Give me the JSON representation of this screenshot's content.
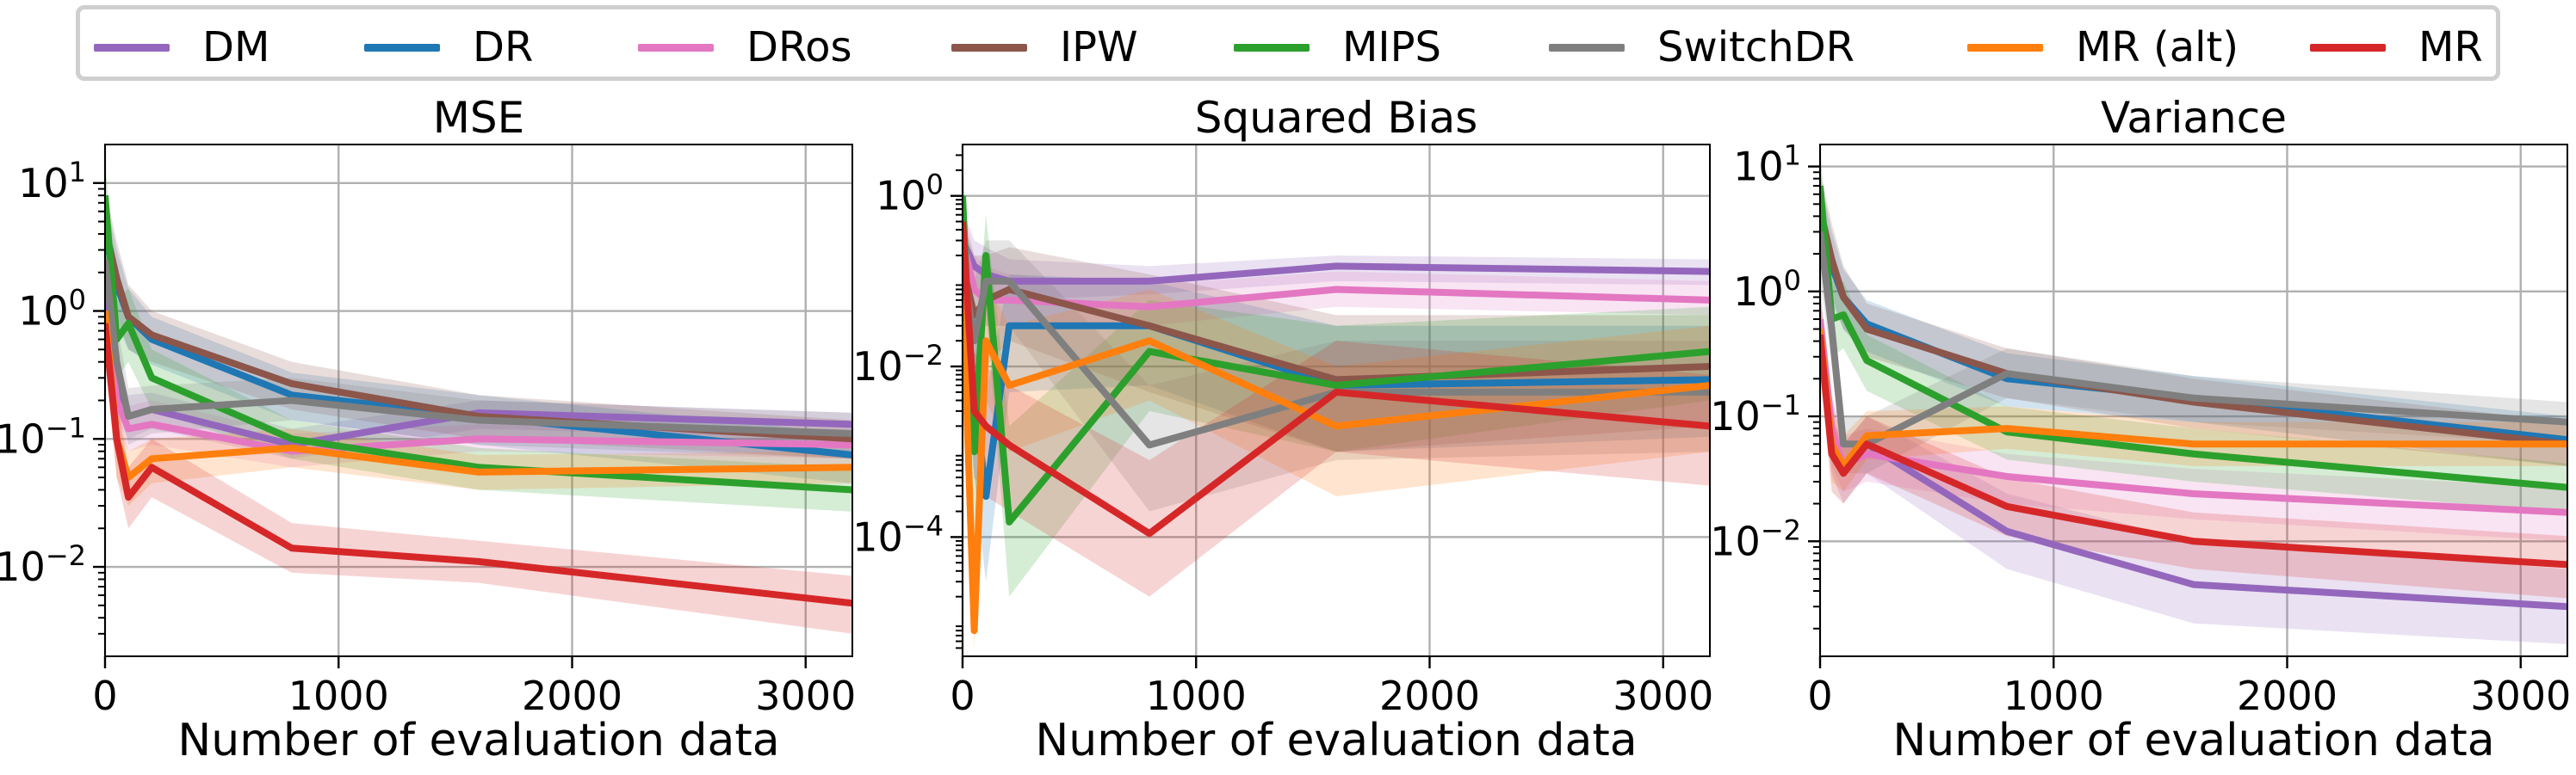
{
  "legend": {
    "items": [
      {
        "label": "DM",
        "color": "#9467bd"
      },
      {
        "label": "DR",
        "color": "#1f77b4"
      },
      {
        "label": "DRos",
        "color": "#e377c2"
      },
      {
        "label": "IPW",
        "color": "#8c564b"
      },
      {
        "label": "MIPS",
        "color": "#2ca02c"
      },
      {
        "label": "SwitchDR",
        "color": "#7f7f7f"
      },
      {
        "label": "MR (alt)",
        "color": "#ff7f0e"
      },
      {
        "label": "MR",
        "color": "#d62728"
      }
    ]
  },
  "chart_data": [
    {
      "type": "line",
      "title": "MSE",
      "xlabel": "Number of evaluation data",
      "ylabel": "",
      "xlim": [
        0,
        3200
      ],
      "ylim": [
        0.002,
        20
      ],
      "yscale": "log",
      "xticks": [
        0,
        1000,
        2000,
        3000
      ],
      "xtick_labels": [
        "0",
        "1000",
        "2000",
        "3000"
      ],
      "yticks": [
        0.01,
        0.1,
        1,
        10
      ],
      "ytick_labels": [
        "10^-2",
        "10^-1",
        "10^0",
        "10^1"
      ],
      "grid": true,
      "x": [
        0,
        50,
        100,
        200,
        800,
        1600,
        3200
      ],
      "series": [
        {
          "name": "DM",
          "values": [
            1.2,
            0.25,
            0.15,
            0.17,
            0.09,
            0.16,
            0.13
          ],
          "band": [
            [
              0.6,
              2.4
            ],
            [
              0.14,
              0.4
            ],
            [
              0.1,
              0.22
            ],
            [
              0.12,
              0.23
            ],
            [
              0.07,
              0.12
            ],
            [
              0.12,
              0.2
            ],
            [
              0.1,
              0.16
            ]
          ]
        },
        {
          "name": "DR",
          "values": [
            4.0,
            1.6,
            0.9,
            0.6,
            0.22,
            0.15,
            0.075
          ],
          "band": [
            [
              1.5,
              8.0
            ],
            [
              0.8,
              3.0
            ],
            [
              0.5,
              1.5
            ],
            [
              0.38,
              0.9
            ],
            [
              0.14,
              0.33
            ],
            [
              0.09,
              0.22
            ],
            [
              0.045,
              0.11
            ]
          ]
        },
        {
          "name": "DRos",
          "values": [
            1.0,
            0.2,
            0.12,
            0.13,
            0.08,
            0.1,
            0.09
          ],
          "band": [
            [
              0.5,
              2.0
            ],
            [
              0.12,
              0.35
            ],
            [
              0.08,
              0.18
            ],
            [
              0.09,
              0.2
            ],
            [
              0.06,
              0.11
            ],
            [
              0.08,
              0.13
            ],
            [
              0.07,
              0.12
            ]
          ]
        },
        {
          "name": "IPW",
          "values": [
            4.5,
            1.8,
            0.9,
            0.65,
            0.27,
            0.15,
            0.1
          ],
          "band": [
            [
              1.5,
              9.0
            ],
            [
              0.9,
              3.5
            ],
            [
              0.5,
              1.6
            ],
            [
              0.4,
              1.0
            ],
            [
              0.17,
              0.4
            ],
            [
              0.1,
              0.22
            ],
            [
              0.07,
              0.14
            ]
          ]
        },
        {
          "name": "MIPS",
          "values": [
            8.0,
            0.6,
            0.8,
            0.3,
            0.1,
            0.06,
            0.04
          ],
          "band": [
            [
              3.0,
              15.0
            ],
            [
              0.3,
              1.2
            ],
            [
              0.4,
              1.5
            ],
            [
              0.17,
              0.5
            ],
            [
              0.07,
              0.14
            ],
            [
              0.04,
              0.085
            ],
            [
              0.027,
              0.06
            ]
          ]
        },
        {
          "name": "SwitchDR",
          "values": [
            2.5,
            0.4,
            0.15,
            0.17,
            0.2,
            0.14,
            0.11
          ],
          "band": [
            [
              1.0,
              5.0
            ],
            [
              0.2,
              0.8
            ],
            [
              0.09,
              0.25
            ],
            [
              0.11,
              0.26
            ],
            [
              0.14,
              0.3
            ],
            [
              0.09,
              0.2
            ],
            [
              0.07,
              0.16
            ]
          ]
        },
        {
          "name": "MR (alt)",
          "values": [
            1.0,
            0.1,
            0.05,
            0.07,
            0.085,
            0.055,
            0.06
          ],
          "band": [
            [
              0.5,
              2.0
            ],
            [
              0.05,
              0.2
            ],
            [
              0.03,
              0.08
            ],
            [
              0.045,
              0.1
            ],
            [
              0.06,
              0.12
            ],
            [
              0.04,
              0.075
            ],
            [
              0.045,
              0.08
            ]
          ]
        },
        {
          "name": "MR",
          "values": [
            0.8,
            0.1,
            0.035,
            0.06,
            0.014,
            0.011,
            0.0052
          ],
          "band": [
            [
              0.4,
              1.6
            ],
            [
              0.05,
              0.2
            ],
            [
              0.02,
              0.06
            ],
            [
              0.035,
              0.1
            ],
            [
              0.009,
              0.022
            ],
            [
              0.0075,
              0.016
            ],
            [
              0.003,
              0.0085
            ]
          ]
        }
      ]
    },
    {
      "type": "line",
      "title": "Squared Bias",
      "xlabel": "Number of evaluation data",
      "ylabel": "",
      "xlim": [
        0,
        3200
      ],
      "ylim": [
        4e-06,
        4
      ],
      "yscale": "log",
      "xticks": [
        0,
        1000,
        2000,
        3000
      ],
      "xtick_labels": [
        "0",
        "1000",
        "2000",
        "3000"
      ],
      "yticks": [
        0.0001,
        0.01,
        1
      ],
      "ytick_labels": [
        "10^-4",
        "10^-2",
        "10^0"
      ],
      "grid": true,
      "x": [
        0,
        50,
        100,
        200,
        800,
        1600,
        3200
      ],
      "series": [
        {
          "name": "DM",
          "values": [
            0.3,
            0.15,
            0.12,
            0.1,
            0.1,
            0.15,
            0.13
          ],
          "band": [
            [
              0.1,
              0.7
            ],
            [
              0.07,
              0.3
            ],
            [
              0.06,
              0.25
            ],
            [
              0.06,
              0.18
            ],
            [
              0.07,
              0.15
            ],
            [
              0.1,
              0.2
            ],
            [
              0.09,
              0.18
            ]
          ]
        },
        {
          "name": "DR",
          "values": [
            0.05,
            0.005,
            0.0003,
            0.03,
            0.03,
            0.006,
            0.007
          ],
          "band": [
            [
              0.01,
              0.3
            ],
            [
              0.0005,
              0.05
            ],
            [
              3e-05,
              0.005
            ],
            [
              0.005,
              0.12
            ],
            [
              0.006,
              0.1
            ],
            [
              0.001,
              0.03
            ],
            [
              0.0015,
              0.03
            ]
          ]
        },
        {
          "name": "DRos",
          "values": [
            0.3,
            0.08,
            0.06,
            0.06,
            0.05,
            0.08,
            0.06
          ],
          "band": [
            [
              0.1,
              0.8
            ],
            [
              0.03,
              0.2
            ],
            [
              0.03,
              0.15
            ],
            [
              0.03,
              0.12
            ],
            [
              0.03,
              0.09
            ],
            [
              0.05,
              0.13
            ],
            [
              0.04,
              0.1
            ]
          ]
        },
        {
          "name": "IPW",
          "values": [
            0.15,
            0.04,
            0.06,
            0.08,
            0.03,
            0.007,
            0.01
          ],
          "band": [
            [
              0.03,
              0.5
            ],
            [
              0.005,
              0.2
            ],
            [
              0.01,
              0.2
            ],
            [
              0.02,
              0.25
            ],
            [
              0.005,
              0.12
            ],
            [
              0.001,
              0.04
            ],
            [
              0.002,
              0.04
            ]
          ]
        },
        {
          "name": "MIPS",
          "values": [
            1.0,
            0.001,
            0.2,
            0.00015,
            0.015,
            0.006,
            0.015
          ],
          "band": [
            [
              0.3,
              3.0
            ],
            [
              0.0001,
              0.01
            ],
            [
              0.05,
              0.6
            ],
            [
              2e-05,
              0.002
            ],
            [
              0.003,
              0.06
            ],
            [
              0.001,
              0.03
            ],
            [
              0.004,
              0.05
            ]
          ]
        },
        {
          "name": "SwitchDR",
          "values": [
            0.15,
            0.02,
            0.1,
            0.1,
            0.0012,
            0.005,
            0.005
          ],
          "band": [
            [
              0.03,
              0.5
            ],
            [
              0.002,
              0.1
            ],
            [
              0.03,
              0.3
            ],
            [
              0.03,
              0.3
            ],
            [
              0.0002,
              0.006
            ],
            [
              0.0008,
              0.02
            ],
            [
              0.001,
              0.02
            ]
          ]
        },
        {
          "name": "MR (alt)",
          "values": [
            0.1,
            8e-06,
            0.02,
            0.006,
            0.02,
            0.002,
            0.006
          ],
          "band": [
            [
              0.02,
              0.5
            ],
            [
              5e-06,
              0.0001
            ],
            [
              0.004,
              0.1
            ],
            [
              0.001,
              0.03
            ],
            [
              0.004,
              0.08
            ],
            [
              0.0003,
              0.01
            ],
            [
              0.001,
              0.03
            ]
          ]
        },
        {
          "name": "MR",
          "values": [
            0.5,
            0.003,
            0.002,
            0.0012,
            0.00011,
            0.005,
            0.002
          ],
          "band": [
            [
              0.1,
              1.5
            ],
            [
              0.0005,
              0.015
            ],
            [
              0.0003,
              0.01
            ],
            [
              0.0002,
              0.006
            ],
            [
              2e-05,
              0.0008
            ],
            [
              0.001,
              0.02
            ],
            [
              0.0004,
              0.008
            ]
          ]
        }
      ]
    },
    {
      "type": "line",
      "title": "Variance",
      "xlabel": "Number of evaluation data",
      "ylabel": "",
      "xlim": [
        0,
        3200
      ],
      "ylim": [
        0.0012,
        15
      ],
      "yscale": "log",
      "xticks": [
        0,
        1000,
        2000,
        3000
      ],
      "xtick_labels": [
        "0",
        "1000",
        "2000",
        "3000"
      ],
      "yticks": [
        0.01,
        0.1,
        1,
        10
      ],
      "ytick_labels": [
        "10^-2",
        "10^-1",
        "10^0",
        "10^1"
      ],
      "grid": true,
      "x": [
        0,
        50,
        100,
        200,
        800,
        1600,
        3200
      ],
      "series": [
        {
          "name": "DM",
          "values": [
            0.5,
            0.07,
            0.035,
            0.06,
            0.012,
            0.0045,
            0.003
          ],
          "band": [
            [
              0.25,
              1.0
            ],
            [
              0.035,
              0.14
            ],
            [
              0.02,
              0.06
            ],
            [
              0.035,
              0.1
            ],
            [
              0.006,
              0.024
            ],
            [
              0.0022,
              0.01
            ],
            [
              0.0015,
              0.006
            ]
          ]
        },
        {
          "name": "DR",
          "values": [
            4.0,
            1.6,
            0.9,
            0.55,
            0.2,
            0.14,
            0.065
          ],
          "band": [
            [
              1.8,
              8.0
            ],
            [
              0.8,
              3.0
            ],
            [
              0.5,
              1.5
            ],
            [
              0.33,
              0.85
            ],
            [
              0.12,
              0.32
            ],
            [
              0.09,
              0.21
            ],
            [
              0.04,
              0.1
            ]
          ]
        },
        {
          "name": "DRos",
          "values": [
            0.6,
            0.08,
            0.04,
            0.05,
            0.033,
            0.024,
            0.017
          ],
          "band": [
            [
              0.3,
              1.2
            ],
            [
              0.04,
              0.15
            ],
            [
              0.025,
              0.07
            ],
            [
              0.03,
              0.08
            ],
            [
              0.02,
              0.05
            ],
            [
              0.015,
              0.038
            ],
            [
              0.01,
              0.027
            ]
          ]
        },
        {
          "name": "IPW",
          "values": [
            4.5,
            1.8,
            0.9,
            0.5,
            0.22,
            0.13,
            0.06
          ],
          "band": [
            [
              2.0,
              9.0
            ],
            [
              0.9,
              3.5
            ],
            [
              0.5,
              1.6
            ],
            [
              0.3,
              0.8
            ],
            [
              0.14,
              0.35
            ],
            [
              0.08,
              0.2
            ],
            [
              0.04,
              0.09
            ]
          ]
        },
        {
          "name": "MIPS",
          "values": [
            7.0,
            0.6,
            0.65,
            0.28,
            0.075,
            0.05,
            0.027
          ],
          "band": [
            [
              3.0,
              14.0
            ],
            [
              0.3,
              1.2
            ],
            [
              0.35,
              1.2
            ],
            [
              0.16,
              0.45
            ],
            [
              0.045,
              0.12
            ],
            [
              0.03,
              0.08
            ],
            [
              0.017,
              0.042
            ]
          ]
        },
        {
          "name": "SwitchDR",
          "values": [
            3.0,
            0.5,
            0.06,
            0.06,
            0.22,
            0.14,
            0.09
          ],
          "band": [
            [
              1.3,
              6.0
            ],
            [
              0.25,
              1.0
            ],
            [
              0.035,
              0.1
            ],
            [
              0.035,
              0.1
            ],
            [
              0.14,
              0.35
            ],
            [
              0.09,
              0.21
            ],
            [
              0.06,
              0.13
            ]
          ]
        },
        {
          "name": "MR (alt)",
          "values": [
            0.5,
            0.06,
            0.04,
            0.07,
            0.08,
            0.06,
            0.06
          ],
          "band": [
            [
              0.25,
              1.0
            ],
            [
              0.03,
              0.12
            ],
            [
              0.025,
              0.07
            ],
            [
              0.045,
              0.11
            ],
            [
              0.055,
              0.12
            ],
            [
              0.04,
              0.09
            ],
            [
              0.04,
              0.09
            ]
          ]
        },
        {
          "name": "MR",
          "values": [
            0.45,
            0.05,
            0.035,
            0.06,
            0.019,
            0.01,
            0.0065
          ],
          "band": [
            [
              0.22,
              0.9
            ],
            [
              0.025,
              0.1
            ],
            [
              0.02,
              0.06
            ],
            [
              0.035,
              0.1
            ],
            [
              0.011,
              0.032
            ],
            [
              0.006,
              0.017
            ],
            [
              0.0035,
              0.011
            ]
          ]
        }
      ]
    }
  ]
}
